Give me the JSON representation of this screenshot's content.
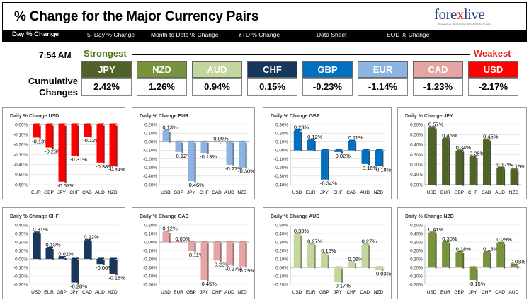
{
  "header": {
    "title": "% Change for the Major Currency Pairs",
    "logo": {
      "text_main": "fore",
      "text_x": "x",
      "text_end": "live",
      "tagline": "Forexlive International Website Index"
    }
  },
  "nav": {
    "items": [
      {
        "label": "Day % Change",
        "active": true
      },
      {
        "label": "5- Day % Change",
        "active": false
      },
      {
        "label": "Month to Date % Change",
        "active": false
      },
      {
        "label": "YTD % Change",
        "active": false
      },
      {
        "label": "Data Sheet",
        "active": false
      },
      {
        "label": "EOD % Change",
        "active": false
      }
    ]
  },
  "summary": {
    "time": "7:54 AM",
    "strongest_label": "Strongest",
    "weakest_label": "Weakest",
    "cumulative_label_1": "Cumulative",
    "cumulative_label_2": "Changes",
    "pairs": [
      {
        "currency": "JPY",
        "value": "2.42%",
        "color": "#4f6228"
      },
      {
        "currency": "NZD",
        "value": "1.26%",
        "color": "#77933c"
      },
      {
        "currency": "AUD",
        "value": "0.94%",
        "color": "#c3d69b"
      },
      {
        "currency": "CHF",
        "value": "0.15%",
        "color": "#17375e"
      },
      {
        "currency": "GBP",
        "value": "-0.23%",
        "color": "#0070c0"
      },
      {
        "currency": "EUR",
        "value": "-1.14%",
        "color": "#8db3e2"
      },
      {
        "currency": "CAD",
        "value": "-1.23%",
        "color": "#e6a5a5"
      },
      {
        "currency": "USD",
        "value": "-2.17%",
        "color": "#ff0000"
      }
    ]
  },
  "chart_data": [
    {
      "type": "bar",
      "title": "Daily % Change USD",
      "color": "#ff0000",
      "categories": [
        "EUR",
        "GBP",
        "JPY",
        "CHF",
        "CAD",
        "AUD",
        "NZD"
      ],
      "values": [
        -0.13,
        -0.23,
        -0.57,
        -0.31,
        -0.12,
        -0.38,
        -0.41
      ],
      "labels": [
        "-0.13%",
        "-0.23%",
        "-0.57%",
        "-0.31%",
        "-0.12%",
        "-0.38%",
        "-0.41%"
      ],
      "ylim": [
        -0.6,
        0.0
      ],
      "step": 0.1,
      "ticks": [
        "0.00%",
        "-0.10%",
        "-0.20%",
        "-0.30%",
        "-0.40%",
        "-0.50%",
        "-0.60%"
      ]
    },
    {
      "type": "bar",
      "title": "Daily % Change EUR",
      "color": "#8db3e2",
      "categories": [
        "USD",
        "GBP",
        "JPY",
        "CHF",
        "CAD",
        "AUD",
        "NZD"
      ],
      "values": [
        0.13,
        -0.12,
        -0.46,
        -0.13,
        0.0,
        -0.27,
        -0.3
      ],
      "labels": [
        "0.13%",
        "-0.12%",
        "-0.46%",
        "-0.13%",
        "0.00%",
        "-0.27%",
        "-0.30%"
      ],
      "ylim": [
        -0.5,
        0.2
      ],
      "step": 0.1,
      "ticks": [
        "0.20%",
        "0.10%",
        "0.00%",
        "-0.10%",
        "-0.20%",
        "-0.30%",
        "-0.40%",
        "-0.50%"
      ]
    },
    {
      "type": "bar",
      "title": "Daily % Change GBP",
      "color": "#0070c0",
      "categories": [
        "USD",
        "EUR",
        "JPY",
        "CHF",
        "CAD",
        "AUD",
        "NZD"
      ],
      "values": [
        0.23,
        0.12,
        -0.34,
        -0.02,
        0.11,
        -0.16,
        -0.18
      ],
      "labels": [
        "0.23%",
        "0.12%",
        "-0.34%",
        "-0.02%",
        "0.11%",
        "-0.16%",
        "-0.18%"
      ],
      "ylim": [
        -0.4,
        0.3
      ],
      "step": 0.1,
      "ticks": [
        "0.30%",
        "0.20%",
        "0.10%",
        "0.00%",
        "-0.10%",
        "-0.20%",
        "-0.30%",
        "-0.40%"
      ]
    },
    {
      "type": "bar",
      "title": "Daily % Change JPY",
      "color": "#4f6228",
      "categories": [
        "USD",
        "EUR",
        "GBP",
        "CHF",
        "CAD",
        "AUD",
        "NZD"
      ],
      "values": [
        0.57,
        0.46,
        0.34,
        0.28,
        0.45,
        0.17,
        0.15
      ],
      "labels": [
        "0.57%",
        "0.46%",
        "0.34%",
        "0.28%",
        "0.45%",
        "0.17%",
        "0.15%"
      ],
      "ylim": [
        0.0,
        0.6
      ],
      "step": 0.1,
      "ticks": [
        "0.60%",
        "0.50%",
        "0.40%",
        "0.30%",
        "0.20%",
        "0.10%",
        "0.00%"
      ]
    },
    {
      "type": "bar",
      "title": "Daily % Change CHF",
      "color": "#17375e",
      "categories": [
        "USD",
        "EUR",
        "GBP",
        "JPY",
        "CAD",
        "AUD",
        "NZD"
      ],
      "values": [
        0.31,
        0.13,
        0.02,
        -0.28,
        0.22,
        -0.06,
        -0.18
      ],
      "labels": [
        "0.31%",
        "0.13%",
        "0.02%",
        "-0.28%",
        "0.22%",
        "-0.06%",
        "-0.18%"
      ],
      "ylim": [
        -0.3,
        0.4
      ],
      "step": 0.1,
      "ticks": [
        "0.40%",
        "0.30%",
        "0.20%",
        "0.10%",
        "0.00%",
        "-0.10%",
        "-0.20%",
        "-0.30%"
      ]
    },
    {
      "type": "bar",
      "title": "Daily % Change CAD",
      "color": "#e6a5a5",
      "categories": [
        "USD",
        "EUR",
        "GBP",
        "JPY",
        "CHF",
        "AUD",
        "NZD"
      ],
      "values": [
        0.12,
        0.0,
        -0.11,
        -0.45,
        -0.22,
        -0.27,
        -0.29
      ],
      "labels": [
        "0.12%",
        "0.00%",
        "-0.11%",
        "-0.45%",
        "-0.22%",
        "-0.27%",
        "-0.29%"
      ],
      "ylim": [
        -0.5,
        0.2
      ],
      "step": 0.1,
      "ticks": [
        "0.20%",
        "0.10%",
        "0.00%",
        "-0.10%",
        "-0.20%",
        "-0.30%",
        "-0.40%",
        "-0.50%"
      ]
    },
    {
      "type": "bar",
      "title": "Daily % Change AUD",
      "color": "#c3d69b",
      "categories": [
        "USD",
        "EUR",
        "GBP",
        "JPY",
        "CHF",
        "CAD",
        "NZD"
      ],
      "values": [
        0.39,
        0.27,
        0.16,
        -0.17,
        0.06,
        0.27,
        -0.03
      ],
      "labels": [
        "0.39%",
        "0.27%",
        "0.16%",
        "-0.17%",
        "0.06%",
        "0.27%",
        "-0.03%"
      ],
      "ylim": [
        -0.2,
        0.5
      ],
      "step": 0.1,
      "ticks": [
        "0.50%",
        "0.40%",
        "0.30%",
        "0.20%",
        "0.10%",
        "0.00%",
        "-0.10%",
        "-0.20%"
      ]
    },
    {
      "type": "bar",
      "title": "Daily % Change NZD",
      "color": "#77933c",
      "categories": [
        "USD",
        "EUR",
        "GBP",
        "JPY",
        "CHF",
        "CAD",
        "AUD"
      ],
      "values": [
        0.41,
        0.3,
        0.18,
        -0.15,
        0.18,
        0.29,
        0.03
      ],
      "labels": [
        "0.41%",
        "0.30%",
        "0.18%",
        "-0.15%",
        "0.18%",
        "0.29%",
        "0.03%"
      ],
      "ylim": [
        -0.2,
        0.5
      ],
      "step": 0.1,
      "ticks": [
        "0.50%",
        "0.40%",
        "0.30%",
        "0.20%",
        "0.10%",
        "0.00%",
        "-0.10%",
        "-0.20%"
      ]
    }
  ]
}
